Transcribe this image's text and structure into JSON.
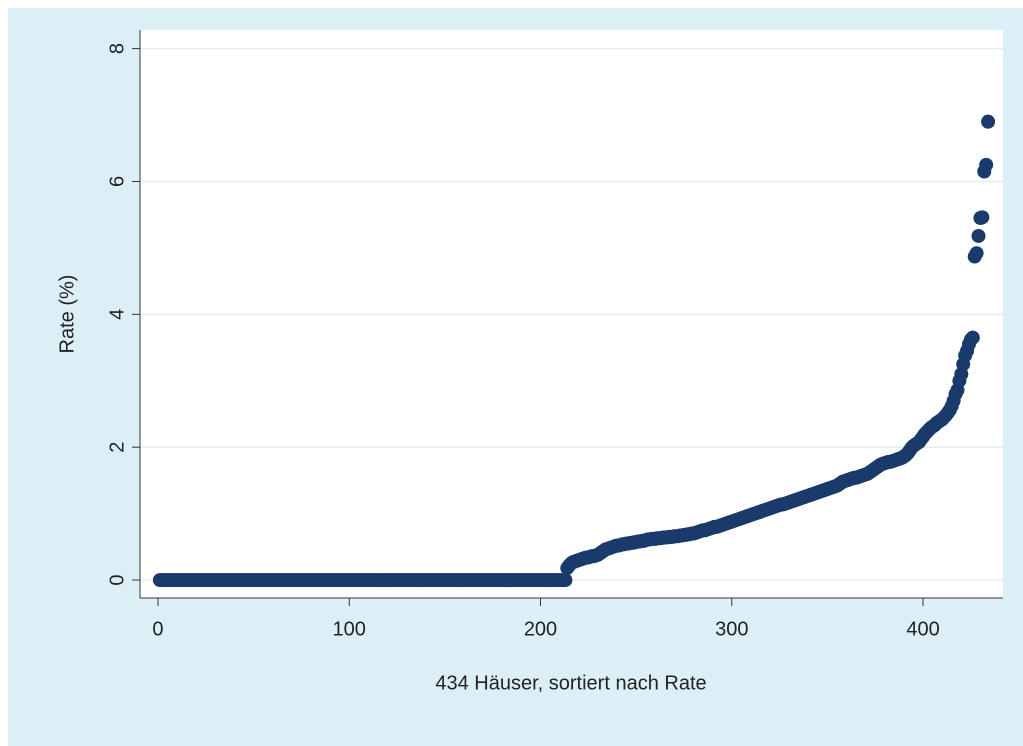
{
  "chart_data": {
    "type": "scatter",
    "y_label": "Rate (%)",
    "x_label": "434 Häuser, sortiert nach Rate",
    "color": "#1a3a6b",
    "xlim": [
      -9.4,
      441.8
    ],
    "xticks": [
      0,
      100,
      200,
      300,
      400
    ],
    "ylim": [
      -0.27,
      8.28
    ],
    "yticks": [
      0,
      2,
      4,
      6,
      8
    ],
    "grid": true,
    "x": [
      1,
      2,
      3,
      4,
      5,
      6,
      7,
      8,
      9,
      10,
      11,
      12,
      13,
      14,
      15,
      16,
      17,
      18,
      19,
      20,
      21,
      22,
      23,
      24,
      25,
      26,
      27,
      28,
      29,
      30,
      31,
      32,
      33,
      34,
      35,
      36,
      37,
      38,
      39,
      40,
      41,
      42,
      43,
      44,
      45,
      46,
      47,
      48,
      49,
      50,
      51,
      52,
      53,
      54,
      55,
      56,
      57,
      58,
      59,
      60,
      61,
      62,
      63,
      64,
      65,
      66,
      67,
      68,
      69,
      70,
      71,
      72,
      73,
      74,
      75,
      76,
      77,
      78,
      79,
      80,
      81,
      82,
      83,
      84,
      85,
      86,
      87,
      88,
      89,
      90,
      91,
      92,
      93,
      94,
      95,
      96,
      97,
      98,
      99,
      100,
      101,
      102,
      103,
      104,
      105,
      106,
      107,
      108,
      109,
      110,
      111,
      112,
      113,
      114,
      115,
      116,
      117,
      118,
      119,
      120,
      121,
      122,
      123,
      124,
      125,
      126,
      127,
      128,
      129,
      130,
      131,
      132,
      133,
      134,
      135,
      136,
      137,
      138,
      139,
      140,
      141,
      142,
      143,
      144,
      145,
      146,
      147,
      148,
      149,
      150,
      151,
      152,
      153,
      154,
      155,
      156,
      157,
      158,
      159,
      160,
      161,
      162,
      163,
      164,
      165,
      166,
      167,
      168,
      169,
      170,
      171,
      172,
      173,
      174,
      175,
      176,
      177,
      178,
      179,
      180,
      181,
      182,
      183,
      184,
      185,
      186,
      187,
      188,
      189,
      190,
      191,
      192,
      193,
      194,
      195,
      196,
      197,
      198,
      199,
      200,
      201,
      202,
      203,
      204,
      205,
      206,
      207,
      208,
      209,
      210,
      211,
      212,
      213,
      214,
      215,
      216,
      217,
      218,
      219,
      220,
      221,
      222,
      223,
      224,
      225,
      226,
      227,
      228,
      229,
      230,
      231,
      232,
      233,
      234,
      235,
      236,
      237,
      238,
      239,
      240,
      241,
      242,
      243,
      244,
      245,
      246,
      247,
      248,
      249,
      250,
      251,
      252,
      253,
      254,
      255,
      256,
      257,
      258,
      259,
      260,
      261,
      262,
      263,
      264,
      265,
      266,
      267,
      268,
      269,
      270,
      271,
      272,
      273,
      274,
      275,
      276,
      277,
      278,
      279,
      280,
      281,
      282,
      283,
      284,
      285,
      286,
      287,
      288,
      289,
      290,
      291,
      292,
      293,
      294,
      295,
      296,
      297,
      298,
      299,
      300,
      301,
      302,
      303,
      304,
      305,
      306,
      307,
      308,
      309,
      310,
      311,
      312,
      313,
      314,
      315,
      316,
      317,
      318,
      319,
      320,
      321,
      322,
      323,
      324,
      325,
      326,
      327,
      328,
      329,
      330,
      331,
      332,
      333,
      334,
      335,
      336,
      337,
      338,
      339,
      340,
      341,
      342,
      343,
      344,
      345,
      346,
      347,
      348,
      349,
      350,
      351,
      352,
      353,
      354,
      355,
      356,
      357,
      358,
      359,
      360,
      361,
      362,
      363,
      364,
      365,
      366,
      367,
      368,
      369,
      370,
      371,
      372,
      373,
      374,
      375,
      376,
      377,
      378,
      379,
      380,
      381,
      382,
      383,
      384,
      385,
      386,
      387,
      388,
      389,
      390,
      391,
      392,
      393,
      394,
      395,
      396,
      397,
      398,
      399,
      400,
      401,
      402,
      403,
      404,
      405,
      406,
      407,
      408,
      409,
      410,
      411,
      412,
      413,
      414,
      415,
      416,
      417,
      418,
      419,
      420,
      421,
      422,
      423,
      424,
      425,
      426,
      427,
      428,
      429,
      430,
      431,
      432,
      433,
      434
    ],
    "values": [
      0,
      0,
      0,
      0,
      0,
      0,
      0,
      0,
      0,
      0,
      0,
      0,
      0,
      0,
      0,
      0,
      0,
      0,
      0,
      0,
      0,
      0,
      0,
      0,
      0,
      0,
      0,
      0,
      0,
      0,
      0,
      0,
      0,
      0,
      0,
      0,
      0,
      0,
      0,
      0,
      0,
      0,
      0,
      0,
      0,
      0,
      0,
      0,
      0,
      0,
      0,
      0,
      0,
      0,
      0,
      0,
      0,
      0,
      0,
      0,
      0,
      0,
      0,
      0,
      0,
      0,
      0,
      0,
      0,
      0,
      0,
      0,
      0,
      0,
      0,
      0,
      0,
      0,
      0,
      0,
      0,
      0,
      0,
      0,
      0,
      0,
      0,
      0,
      0,
      0,
      0,
      0,
      0,
      0,
      0,
      0,
      0,
      0,
      0,
      0,
      0,
      0,
      0,
      0,
      0,
      0,
      0,
      0,
      0,
      0,
      0,
      0,
      0,
      0,
      0,
      0,
      0,
      0,
      0,
      0,
      0,
      0,
      0,
      0,
      0,
      0,
      0,
      0,
      0,
      0,
      0,
      0,
      0,
      0,
      0,
      0,
      0,
      0,
      0,
      0,
      0,
      0,
      0,
      0,
      0,
      0,
      0,
      0,
      0,
      0,
      0,
      0,
      0,
      0,
      0,
      0,
      0,
      0,
      0,
      0,
      0,
      0,
      0,
      0,
      0,
      0,
      0,
      0,
      0,
      0,
      0,
      0,
      0,
      0,
      0,
      0,
      0,
      0,
      0,
      0,
      0,
      0,
      0,
      0,
      0,
      0,
      0,
      0,
      0,
      0,
      0,
      0,
      0,
      0,
      0,
      0,
      0,
      0,
      0,
      0,
      0,
      0,
      0,
      0,
      0,
      0,
      0,
      0,
      0,
      0,
      0,
      0,
      0,
      0.18,
      0.22,
      0.25,
      0.27,
      0.28,
      0.29,
      0.3,
      0.31,
      0.32,
      0.33,
      0.34,
      0.34,
      0.35,
      0.36,
      0.36,
      0.37,
      0.38,
      0.4,
      0.42,
      0.44,
      0.46,
      0.47,
      0.48,
      0.49,
      0.5,
      0.51,
      0.52,
      0.52,
      0.53,
      0.54,
      0.54,
      0.55,
      0.55,
      0.56,
      0.56,
      0.57,
      0.57,
      0.58,
      0.58,
      0.59,
      0.59,
      0.6,
      0.61,
      0.61,
      0.62,
      0.62,
      0.62,
      0.63,
      0.63,
      0.63,
      0.64,
      0.64,
      0.64,
      0.65,
      0.65,
      0.65,
      0.66,
      0.66,
      0.66,
      0.67,
      0.67,
      0.68,
      0.68,
      0.69,
      0.69,
      0.7,
      0.7,
      0.71,
      0.72,
      0.73,
      0.74,
      0.75,
      0.75,
      0.76,
      0.77,
      0.78,
      0.79,
      0.8,
      0.8,
      0.81,
      0.82,
      0.83,
      0.84,
      0.85,
      0.86,
      0.87,
      0.88,
      0.89,
      0.9,
      0.91,
      0.92,
      0.93,
      0.94,
      0.95,
      0.96,
      0.97,
      0.98,
      0.99,
      1.0,
      1.01,
      1.02,
      1.03,
      1.04,
      1.05,
      1.06,
      1.07,
      1.08,
      1.09,
      1.1,
      1.11,
      1.12,
      1.13,
      1.14,
      1.14,
      1.15,
      1.16,
      1.17,
      1.18,
      1.19,
      1.2,
      1.21,
      1.22,
      1.23,
      1.24,
      1.25,
      1.26,
      1.27,
      1.28,
      1.29,
      1.3,
      1.31,
      1.32,
      1.33,
      1.34,
      1.35,
      1.36,
      1.37,
      1.38,
      1.39,
      1.4,
      1.41,
      1.42,
      1.44,
      1.46,
      1.48,
      1.49,
      1.5,
      1.51,
      1.52,
      1.53,
      1.54,
      1.54,
      1.55,
      1.56,
      1.57,
      1.58,
      1.59,
      1.6,
      1.62,
      1.64,
      1.66,
      1.68,
      1.7,
      1.72,
      1.74,
      1.75,
      1.76,
      1.77,
      1.78,
      1.78,
      1.79,
      1.8,
      1.81,
      1.82,
      1.83,
      1.84,
      1.86,
      1.88,
      1.91,
      1.95,
      1.99,
      2.02,
      2.04,
      2.06,
      2.08,
      2.12,
      2.16,
      2.2,
      2.23,
      2.26,
      2.29,
      2.31,
      2.33,
      2.36,
      2.38,
      2.4,
      2.42,
      2.45,
      2.48,
      2.52,
      2.56,
      2.62,
      2.7,
      2.8,
      2.86,
      3.0,
      3.1,
      3.25,
      3.38,
      3.45,
      3.55,
      3.62,
      3.65,
      4.87,
      4.92,
      5.18,
      5.45,
      5.46,
      6.15,
      6.25,
      6.9
    ]
  }
}
